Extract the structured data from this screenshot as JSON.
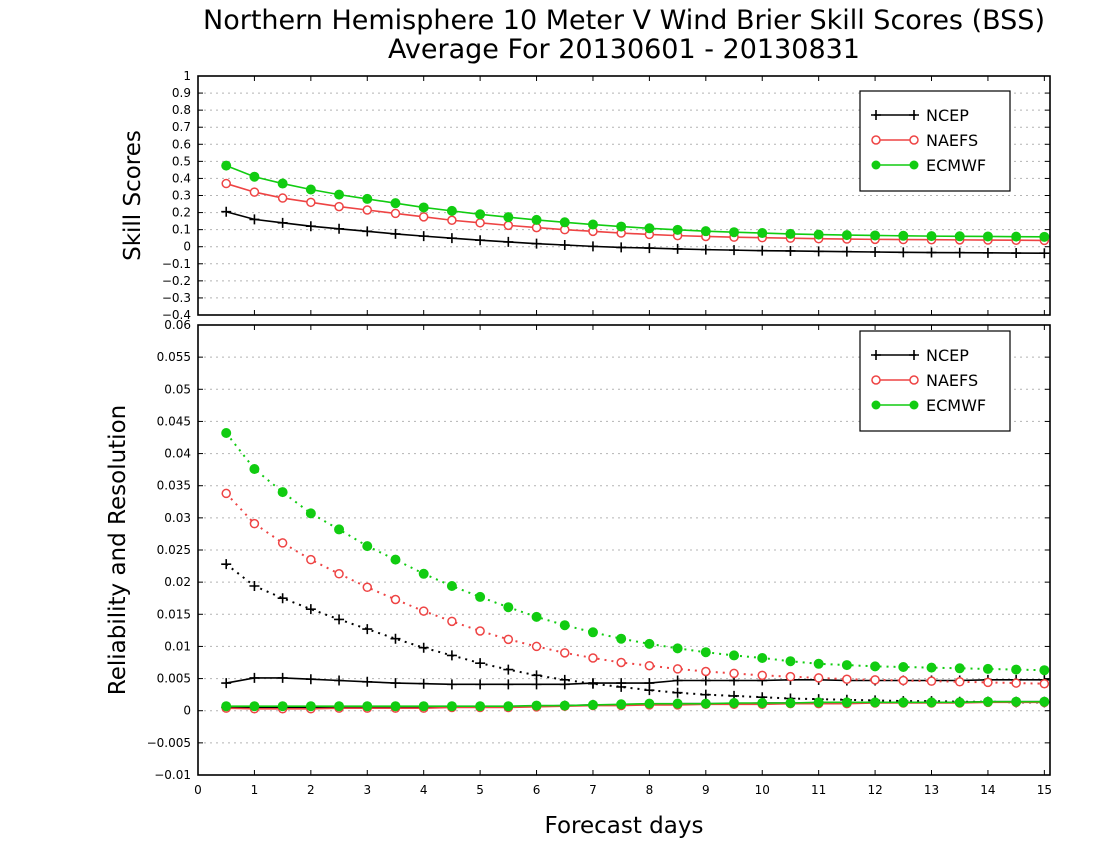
{
  "title": "Northern Hemisphere 10 Meter V Wind Brier Skill Scores (BSS)",
  "subtitle": "Average For 20130601 - 20130831",
  "xlabel": "Forecast days",
  "colors": {
    "NCEP": "#000000",
    "NAEFS": "#ee4444",
    "ECMWF": "#11cc11"
  },
  "chart_data": [
    {
      "type": "line",
      "ylabel": "Skill Scores",
      "xlim": [
        0,
        15.1
      ],
      "ylim": [
        -0.4,
        1
      ],
      "x_ticks": [
        "0",
        "1",
        "2",
        "3",
        "4",
        "5",
        "6",
        "7",
        "8",
        "9",
        "10",
        "11",
        "12",
        "13",
        "14",
        "15"
      ],
      "y_ticks": [
        "−0.4",
        "−0.3",
        "−0.2",
        "−0.1",
        "0",
        "0.1",
        "0.2",
        "0.3",
        "0.4",
        "0.5",
        "0.6",
        "0.7",
        "0.8",
        "0.9",
        "1"
      ],
      "grid": true,
      "legend": "top-right",
      "x": [
        0.5,
        1,
        1.5,
        2,
        2.5,
        3,
        3.5,
        4,
        4.5,
        5,
        5.5,
        6,
        6.5,
        7,
        7.5,
        8,
        8.5,
        9,
        9.5,
        10,
        10.5,
        11,
        11.5,
        12,
        12.5,
        13,
        13.5,
        14,
        14.5,
        15
      ],
      "series": [
        {
          "name": "NCEP",
          "style": "solid",
          "marker": "plus",
          "values": [
            0.205,
            0.16,
            0.14,
            0.12,
            0.105,
            0.09,
            0.075,
            0.062,
            0.05,
            0.038,
            0.028,
            0.018,
            0.01,
            0.002,
            -0.004,
            -0.008,
            -0.013,
            -0.017,
            -0.02,
            -0.023,
            -0.025,
            -0.027,
            -0.029,
            -0.031,
            -0.033,
            -0.034,
            -0.035,
            -0.036,
            -0.037,
            -0.038
          ]
        },
        {
          "name": "NAEFS",
          "style": "solid",
          "marker": "open-circle",
          "values": [
            0.37,
            0.32,
            0.285,
            0.26,
            0.235,
            0.215,
            0.195,
            0.175,
            0.155,
            0.14,
            0.125,
            0.112,
            0.1,
            0.09,
            0.08,
            0.072,
            0.065,
            0.06,
            0.056,
            0.053,
            0.05,
            0.047,
            0.045,
            0.043,
            0.042,
            0.041,
            0.04,
            0.039,
            0.038,
            0.037
          ]
        },
        {
          "name": "ECMWF",
          "style": "solid",
          "marker": "filled-circle",
          "values": [
            0.475,
            0.41,
            0.37,
            0.335,
            0.305,
            0.28,
            0.255,
            0.23,
            0.21,
            0.19,
            0.173,
            0.157,
            0.143,
            0.13,
            0.118,
            0.108,
            0.099,
            0.091,
            0.085,
            0.08,
            0.075,
            0.071,
            0.068,
            0.066,
            0.064,
            0.062,
            0.061,
            0.06,
            0.059,
            0.058
          ]
        }
      ]
    },
    {
      "type": "line",
      "ylabel": "Reliability and Resolution",
      "xlim": [
        0,
        15.1
      ],
      "ylim": [
        -0.01,
        0.06
      ],
      "x_ticks": [
        "0",
        "1",
        "2",
        "3",
        "4",
        "5",
        "6",
        "7",
        "8",
        "9",
        "10",
        "11",
        "12",
        "13",
        "14",
        "15"
      ],
      "y_ticks": [
        "−0.01",
        "−0.005",
        "0",
        "0.005",
        "0.01",
        "0.015",
        "0.02",
        "0.025",
        "0.03",
        "0.035",
        "0.04",
        "0.045",
        "0.05",
        "0.055",
        "0.06"
      ],
      "grid": true,
      "legend": "top-right",
      "x": [
        0.5,
        1,
        1.5,
        2,
        2.5,
        3,
        3.5,
        4,
        4.5,
        5,
        5.5,
        6,
        6.5,
        7,
        7.5,
        8,
        8.5,
        9,
        9.5,
        10,
        10.5,
        11,
        11.5,
        12,
        12.5,
        13,
        13.5,
        14,
        14.5,
        15
      ],
      "series": [
        {
          "name": "NCEP",
          "style": "dotted",
          "marker": "plus",
          "values": [
            0.0228,
            0.0194,
            0.0175,
            0.0158,
            0.0142,
            0.0127,
            0.0112,
            0.0098,
            0.0086,
            0.0074,
            0.0064,
            0.0055,
            0.0048,
            0.0042,
            0.0037,
            0.0032,
            0.0028,
            0.0025,
            0.0023,
            0.0021,
            0.0019,
            0.0018,
            0.0017,
            0.0016,
            0.0015,
            0.0015,
            0.0014,
            0.0014,
            0.0013,
            0.0013
          ]
        },
        {
          "name": "NCEP",
          "style": "solid",
          "marker": "plus",
          "values": [
            0.0043,
            0.0051,
            0.0051,
            0.0049,
            0.0047,
            0.0045,
            0.0043,
            0.0042,
            0.0041,
            0.0041,
            0.0041,
            0.0041,
            0.0041,
            0.0043,
            0.0043,
            0.0043,
            0.0047,
            0.0047,
            0.0047,
            0.0047,
            0.0048,
            0.0048,
            0.0047,
            0.0047,
            0.0047,
            0.0047,
            0.0047,
            0.0048,
            0.0048,
            0.0048
          ]
        },
        {
          "name": "NCEP",
          "style": "solid",
          "marker": "plus",
          "values": [
            0.0005,
            0.0005,
            0.0005,
            0.0005,
            0.0005,
            0.0005,
            0.0005,
            0.0005,
            0.0006,
            0.0006,
            0.0006,
            0.0007,
            0.0008,
            0.0009,
            0.0009,
            0.001,
            0.0011,
            0.0011,
            0.0011,
            0.0012,
            0.0012,
            0.0012,
            0.0012,
            0.0013,
            0.0013,
            0.0013,
            0.0013,
            0.0014,
            0.0014,
            0.0014
          ]
        },
        {
          "name": "NAEFS",
          "style": "dotted",
          "marker": "open-circle",
          "values": [
            0.0338,
            0.0291,
            0.0261,
            0.0235,
            0.0213,
            0.0192,
            0.0173,
            0.0155,
            0.0139,
            0.0124,
            0.0111,
            0.01,
            0.009,
            0.0082,
            0.0075,
            0.007,
            0.0065,
            0.0061,
            0.0058,
            0.0055,
            0.0053,
            0.0051,
            0.0049,
            0.0048,
            0.0047,
            0.0046,
            0.0045,
            0.0044,
            0.0043,
            0.0042
          ]
        },
        {
          "name": "NAEFS",
          "style": "solid",
          "marker": "open-circle",
          "values": [
            0.0004,
            0.0003,
            0.0003,
            0.0003,
            0.0004,
            0.0004,
            0.0004,
            0.0004,
            0.0005,
            0.0005,
            0.0005,
            0.0006,
            0.0007,
            0.0008,
            0.0008,
            0.0009,
            0.0009,
            0.001,
            0.001,
            0.001,
            0.0011,
            0.0011,
            0.0011,
            0.0012,
            0.0012,
            0.0012,
            0.0012,
            0.0013,
            0.0013,
            0.0013
          ]
        },
        {
          "name": "ECMWF",
          "style": "dotted",
          "marker": "filled-circle",
          "values": [
            0.0432,
            0.0376,
            0.034,
            0.0307,
            0.0282,
            0.0256,
            0.0235,
            0.0213,
            0.0194,
            0.0177,
            0.0161,
            0.0146,
            0.0133,
            0.0122,
            0.0112,
            0.0104,
            0.0097,
            0.0091,
            0.0086,
            0.0082,
            0.0077,
            0.0073,
            0.0071,
            0.0069,
            0.0068,
            0.0067,
            0.0066,
            0.0065,
            0.0064,
            0.0063
          ]
        },
        {
          "name": "ECMWF",
          "style": "solid",
          "marker": "filled-circle",
          "values": [
            0.0007,
            0.0007,
            0.0007,
            0.0007,
            0.0007,
            0.0007,
            0.0007,
            0.0007,
            0.0007,
            0.0007,
            0.0007,
            0.0008,
            0.0008,
            0.0009,
            0.001,
            0.0011,
            0.0011,
            0.0011,
            0.0012,
            0.0012,
            0.0012,
            0.0013,
            0.0013,
            0.0013,
            0.0013,
            0.0013,
            0.0013,
            0.0014,
            0.0014,
            0.0014
          ]
        }
      ]
    }
  ]
}
